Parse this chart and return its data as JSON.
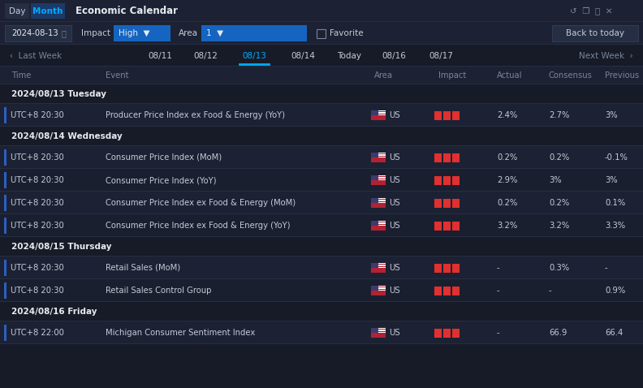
{
  "bg_color": "#161b27",
  "toolbar1_bg": "#1c2233",
  "toolbar2_bg": "#1c2233",
  "nav_bg": "#161b27",
  "col_header_bg": "#1c2233",
  "row_bg_even": "#1c2233",
  "row_bg_odd": "#1a1f30",
  "section_bg": "#161b27",
  "text_white": "#e8eaf0",
  "text_gray": "#7a8499",
  "text_light": "#c5cad8",
  "accent_blue": "#00aaff",
  "btn_blue": "#1565c0",
  "day_btn_bg": "#252e42",
  "month_btn_bg": "#1a2a4a",
  "bar_red": "#e03030",
  "bar_dark": "#5a2020",
  "divider": "#252e42",
  "left_accent": "#2a5fc0",
  "back_btn_bg": "#252e42",
  "back_btn_border": "#3a4460",
  "title": "Economic Calendar",
  "date_label": "2024-08-13",
  "impact_label": "High",
  "area_label": "1",
  "nav_dates": [
    "08/11",
    "08/12",
    "08/13",
    "08/14",
    "Today",
    "08/16",
    "08/17"
  ],
  "col_headers": [
    "Time",
    "Event",
    "Area",
    "Impact",
    "Actual",
    "Consensus",
    "Previous"
  ],
  "sections": [
    {
      "label": "2024/08/13 Tuesday",
      "rows": [
        {
          "time": "UTC+8 20:30",
          "event": "Producer Price Index ex Food & Energy (YoY)",
          "actual": "2.4%",
          "consensus": "2.7%",
          "previous": "3%"
        }
      ]
    },
    {
      "label": "2024/08/14 Wednesday",
      "rows": [
        {
          "time": "UTC+8 20:30",
          "event": "Consumer Price Index (MoM)",
          "actual": "0.2%",
          "consensus": "0.2%",
          "previous": "-0.1%"
        },
        {
          "time": "UTC+8 20:30",
          "event": "Consumer Price Index (YoY)",
          "actual": "2.9%",
          "consensus": "3%",
          "previous": "3%"
        },
        {
          "time": "UTC+8 20:30",
          "event": "Consumer Price Index ex Food & Energy (MoM)",
          "actual": "0.2%",
          "consensus": "0.2%",
          "previous": "0.1%"
        },
        {
          "time": "UTC+8 20:30",
          "event": "Consumer Price Index ex Food & Energy (YoY)",
          "actual": "3.2%",
          "consensus": "3.2%",
          "previous": "3.3%"
        }
      ]
    },
    {
      "label": "2024/08/15 Thursday",
      "rows": [
        {
          "time": "UTC+8 20:30",
          "event": "Retail Sales (MoM)",
          "actual": "-",
          "consensus": "0.3%",
          "previous": "-"
        },
        {
          "time": "UTC+8 20:30",
          "event": "Retail Sales Control Group",
          "actual": "-",
          "consensus": "-",
          "previous": "0.9%"
        }
      ]
    },
    {
      "label": "2024/08/16 Friday",
      "rows": [
        {
          "time": "UTC+8 22:00",
          "event": "Michigan Consumer Sentiment Index",
          "actual": "-",
          "consensus": "66.9",
          "previous": "66.4"
        }
      ]
    }
  ]
}
